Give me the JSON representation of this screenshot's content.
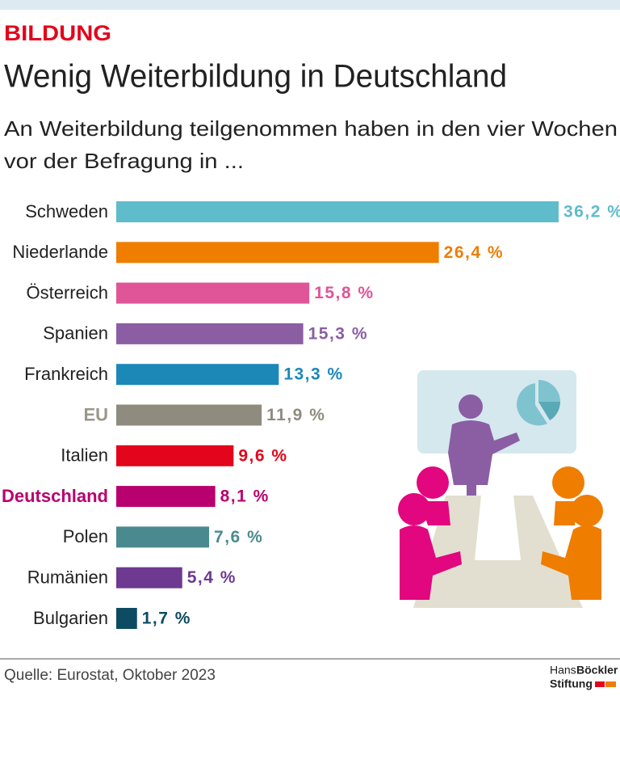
{
  "chart_data": {
    "type": "barh",
    "kicker": "BILDUNG",
    "title": "Wenig Weiterbildung in Deutschland",
    "subtitle": [
      "An Weiterbildung teilgenommen haben in den vier Wochen",
      "vor der Befragung in ..."
    ],
    "categories": [
      "Schweden",
      "Niederlande",
      "Österreich",
      "Spanien",
      "Frankreich",
      "EU",
      "Italien",
      "Deutschland",
      "Polen",
      "Rumänien",
      "Bulgarien"
    ],
    "values": [
      36.2,
      26.4,
      15.8,
      15.3,
      13.3,
      11.9,
      9.6,
      8.1,
      7.6,
      5.4,
      1.7
    ],
    "value_labels": [
      "36,2 %",
      "26,4 %",
      "15,8 %",
      "15,3 %",
      "13,3 %",
      "11,9 %",
      "9,6 %",
      "8,1 %",
      "7,6 %",
      "5,4 %",
      "1,7 %"
    ],
    "colors": [
      "#5fbccb",
      "#ef7d00",
      "#e05597",
      "#8b5ea4",
      "#1b88b8",
      "#8f8c7f",
      "#e3051b",
      "#b8006e",
      "#4a8a8f",
      "#6e3990",
      "#0d4b62"
    ],
    "label_colors": [
      "#222222",
      "#222222",
      "#222222",
      "#222222",
      "#222222",
      "#9a978a",
      "#222222",
      "#b8006e",
      "#222222",
      "#222222",
      "#222222"
    ],
    "source": "Quelle: Eurostat, Oktober 2023",
    "logo": {
      "hans": "Hans",
      "boeckler": "Böckler",
      "stiftung": "Stiftung"
    }
  }
}
